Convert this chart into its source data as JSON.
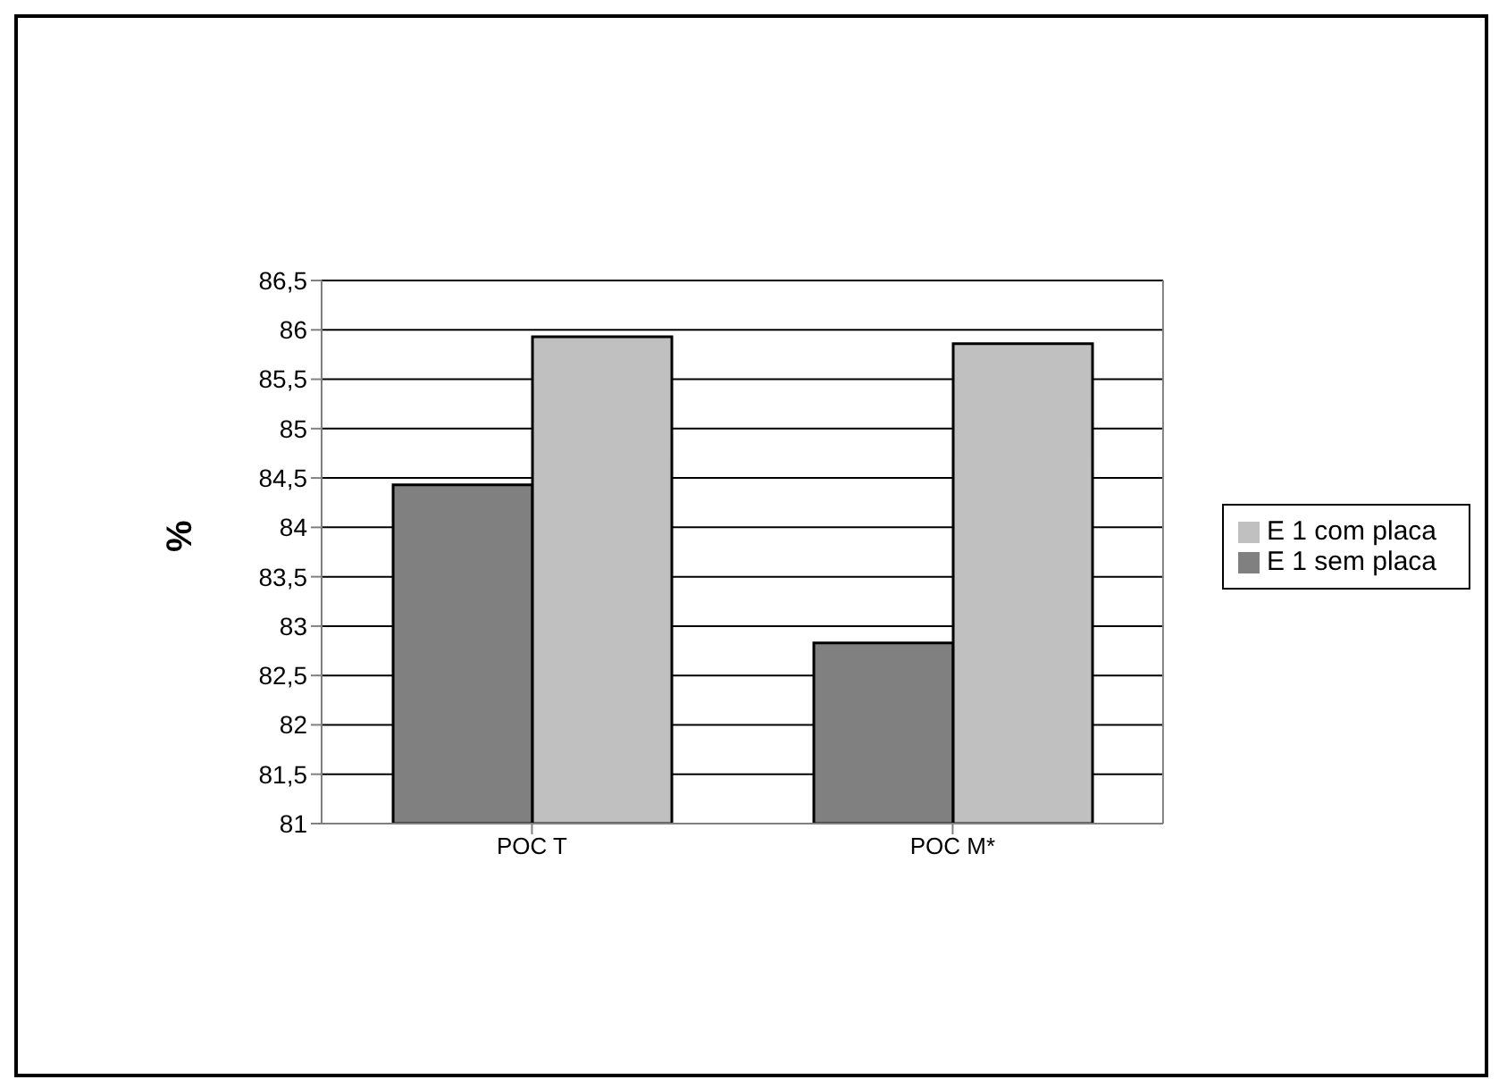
{
  "chart_data": {
    "type": "bar",
    "ylabel": "%",
    "categories": [
      "POC T",
      "POC M*"
    ],
    "series": [
      {
        "name": "E 1 sem placa",
        "color": "#808080",
        "values": [
          84.43,
          82.83
        ]
      },
      {
        "name": "E 1 com placa",
        "color": "#c0c0c0",
        "values": [
          85.93,
          85.86
        ]
      }
    ],
    "ylim": [
      81,
      86.5
    ],
    "yticks": [
      81,
      {
        "value": 81.5,
        "label": "81,5"
      },
      82,
      {
        "value": 82.5,
        "label": "82,5"
      },
      83,
      {
        "value": 83.5,
        "label": "83,5"
      },
      84,
      {
        "value": 84.5,
        "label": "84,5"
      },
      85,
      {
        "value": 85.5,
        "label": "85,5"
      },
      86,
      {
        "value": 86.5,
        "label": "86,5"
      }
    ],
    "grid": "y",
    "legend": "right"
  }
}
